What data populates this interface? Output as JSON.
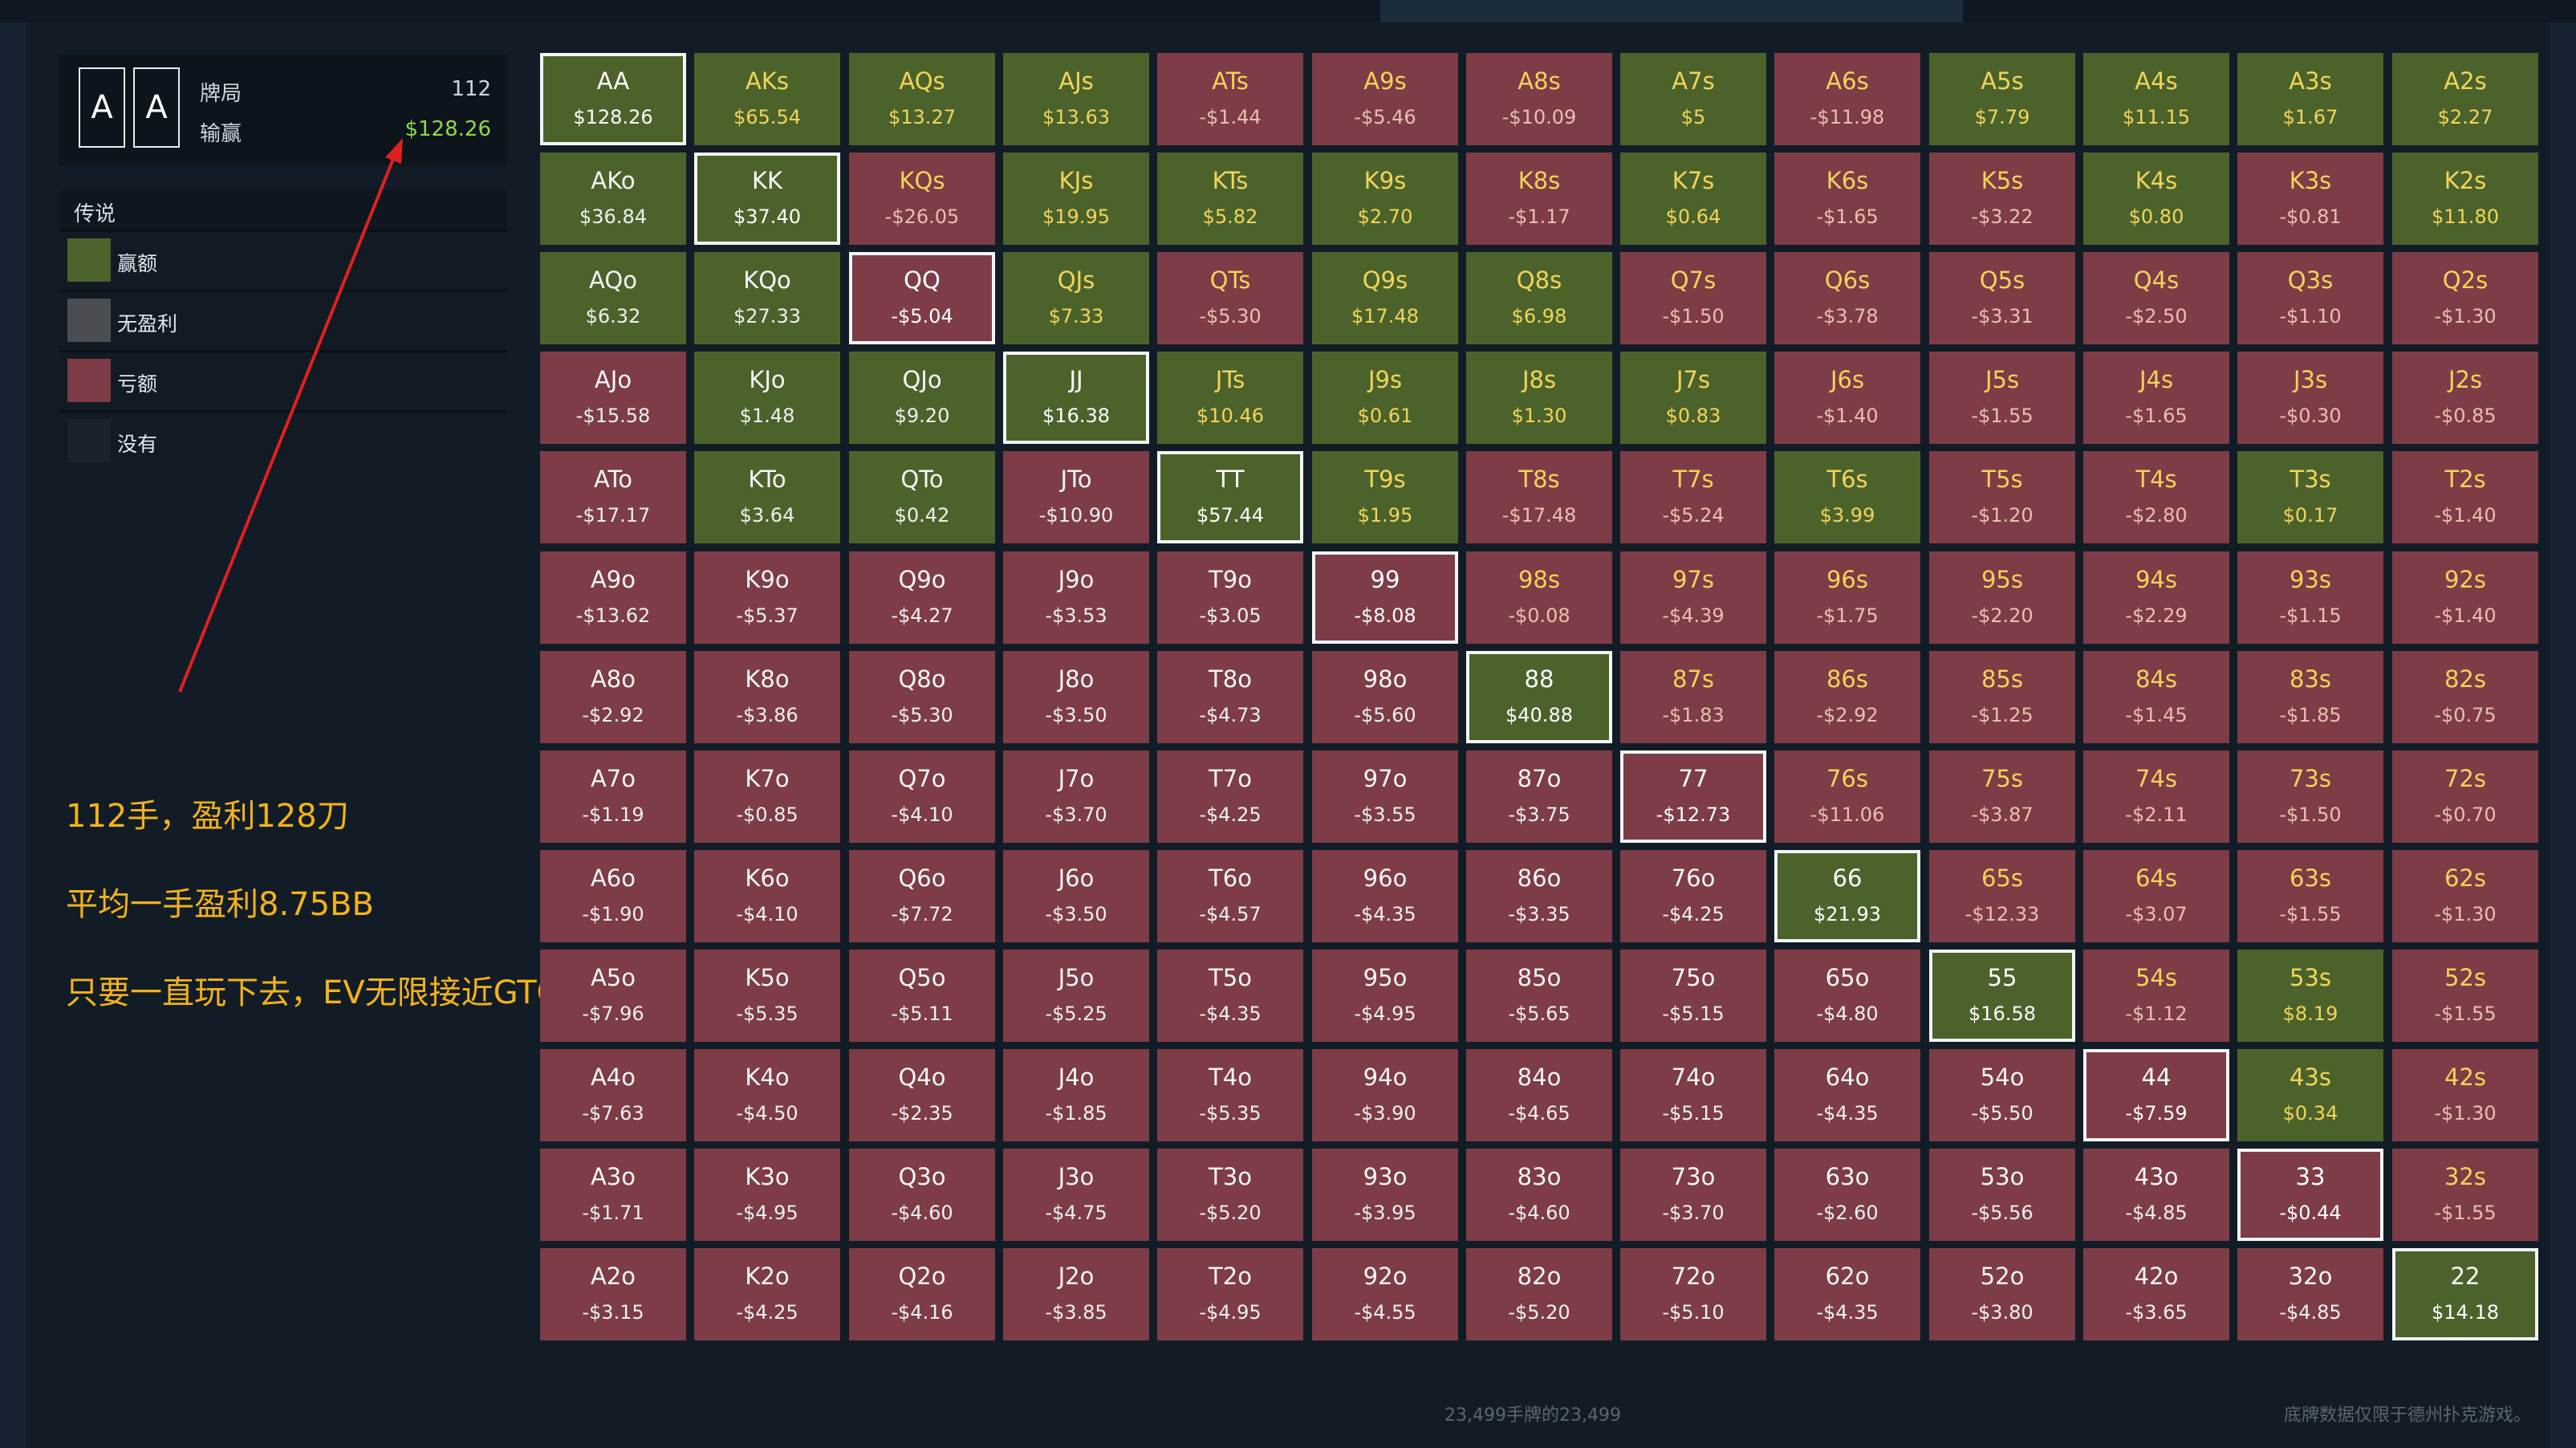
{
  "stats": {
    "cards": [
      "A",
      "A"
    ],
    "hands_label": "牌局",
    "hands_value": "112",
    "winnings_label": "输赢",
    "winnings_value": "$128.26"
  },
  "legend": {
    "title": "传说",
    "items": [
      {
        "label": "赢额",
        "color": "#4b632b"
      },
      {
        "label": "无盈利",
        "color": "#4a4e53"
      },
      {
        "label": "亏额",
        "color": "#7d3c46"
      },
      {
        "label": "没有",
        "color": "#1a222b"
      }
    ]
  },
  "notes": [
    "112手，盈利128刀",
    "平均一手盈利8.75BB",
    "只要一直玩下去，EV无限接近GTO"
  ],
  "colors": {
    "win": "#4b632b",
    "loss": "#7d3c46",
    "arrow": "#e02020",
    "note": "#f2b21c"
  },
  "grid": [
    [
      [
        "AA",
        "$128.26"
      ],
      [
        "AKs",
        "$65.54"
      ],
      [
        "AQs",
        "$13.27"
      ],
      [
        "AJs",
        "$13.63"
      ],
      [
        "ATs",
        "-$1.44"
      ],
      [
        "A9s",
        "-$5.46"
      ],
      [
        "A8s",
        "-$10.09"
      ],
      [
        "A7s",
        "$5"
      ],
      [
        "A6s",
        "-$11.98"
      ],
      [
        "A5s",
        "$7.79"
      ],
      [
        "A4s",
        "$11.15"
      ],
      [
        "A3s",
        "$1.67"
      ],
      [
        "A2s",
        "$2.27"
      ]
    ],
    [
      [
        "AKo",
        "$36.84"
      ],
      [
        "KK",
        "$37.40"
      ],
      [
        "KQs",
        "-$26.05"
      ],
      [
        "KJs",
        "$19.95"
      ],
      [
        "KTs",
        "$5.82"
      ],
      [
        "K9s",
        "$2.70"
      ],
      [
        "K8s",
        "-$1.17"
      ],
      [
        "K7s",
        "$0.64"
      ],
      [
        "K6s",
        "-$1.65"
      ],
      [
        "K5s",
        "-$3.22"
      ],
      [
        "K4s",
        "$0.80"
      ],
      [
        "K3s",
        "-$0.81"
      ],
      [
        "K2s",
        "$11.80"
      ]
    ],
    [
      [
        "AQo",
        "$6.32"
      ],
      [
        "KQo",
        "$27.33"
      ],
      [
        "QQ",
        "-$5.04"
      ],
      [
        "QJs",
        "$7.33"
      ],
      [
        "QTs",
        "-$5.30"
      ],
      [
        "Q9s",
        "$17.48"
      ],
      [
        "Q8s",
        "$6.98"
      ],
      [
        "Q7s",
        "-$1.50"
      ],
      [
        "Q6s",
        "-$3.78"
      ],
      [
        "Q5s",
        "-$3.31"
      ],
      [
        "Q4s",
        "-$2.50"
      ],
      [
        "Q3s",
        "-$1.10"
      ],
      [
        "Q2s",
        "-$1.30"
      ]
    ],
    [
      [
        "AJo",
        "-$15.58"
      ],
      [
        "KJo",
        "$1.48"
      ],
      [
        "QJo",
        "$9.20"
      ],
      [
        "JJ",
        "$16.38"
      ],
      [
        "JTs",
        "$10.46"
      ],
      [
        "J9s",
        "$0.61"
      ],
      [
        "J8s",
        "$1.30"
      ],
      [
        "J7s",
        "$0.83"
      ],
      [
        "J6s",
        "-$1.40"
      ],
      [
        "J5s",
        "-$1.55"
      ],
      [
        "J4s",
        "-$1.65"
      ],
      [
        "J3s",
        "-$0.30"
      ],
      [
        "J2s",
        "-$0.85"
      ]
    ],
    [
      [
        "ATo",
        "-$17.17"
      ],
      [
        "KTo",
        "$3.64"
      ],
      [
        "QTo",
        "$0.42"
      ],
      [
        "JTo",
        "-$10.90"
      ],
      [
        "TT",
        "$57.44"
      ],
      [
        "T9s",
        "$1.95"
      ],
      [
        "T8s",
        "-$17.48"
      ],
      [
        "T7s",
        "-$5.24"
      ],
      [
        "T6s",
        "$3.99"
      ],
      [
        "T5s",
        "-$1.20"
      ],
      [
        "T4s",
        "-$2.80"
      ],
      [
        "T3s",
        "$0.17"
      ],
      [
        "T2s",
        "-$1.40"
      ]
    ],
    [
      [
        "A9o",
        "-$13.62"
      ],
      [
        "K9o",
        "-$5.37"
      ],
      [
        "Q9o",
        "-$4.27"
      ],
      [
        "J9o",
        "-$3.53"
      ],
      [
        "T9o",
        "-$3.05"
      ],
      [
        "99",
        "-$8.08"
      ],
      [
        "98s",
        "-$0.08"
      ],
      [
        "97s",
        "-$4.39"
      ],
      [
        "96s",
        "-$1.75"
      ],
      [
        "95s",
        "-$2.20"
      ],
      [
        "94s",
        "-$2.29"
      ],
      [
        "93s",
        "-$1.15"
      ],
      [
        "92s",
        "-$1.40"
      ]
    ],
    [
      [
        "A8o",
        "-$2.92"
      ],
      [
        "K8o",
        "-$3.86"
      ],
      [
        "Q8o",
        "-$5.30"
      ],
      [
        "J8o",
        "-$3.50"
      ],
      [
        "T8o",
        "-$4.73"
      ],
      [
        "98o",
        "-$5.60"
      ],
      [
        "88",
        "$40.88"
      ],
      [
        "87s",
        "-$1.83"
      ],
      [
        "86s",
        "-$2.92"
      ],
      [
        "85s",
        "-$1.25"
      ],
      [
        "84s",
        "-$1.45"
      ],
      [
        "83s",
        "-$1.85"
      ],
      [
        "82s",
        "-$0.75"
      ]
    ],
    [
      [
        "A7o",
        "-$1.19"
      ],
      [
        "K7o",
        "-$0.85"
      ],
      [
        "Q7o",
        "-$4.10"
      ],
      [
        "J7o",
        "-$3.70"
      ],
      [
        "T7o",
        "-$4.25"
      ],
      [
        "97o",
        "-$3.55"
      ],
      [
        "87o",
        "-$3.75"
      ],
      [
        "77",
        "-$12.73"
      ],
      [
        "76s",
        "-$11.06"
      ],
      [
        "75s",
        "-$3.87"
      ],
      [
        "74s",
        "-$2.11"
      ],
      [
        "73s",
        "-$1.50"
      ],
      [
        "72s",
        "-$0.70"
      ]
    ],
    [
      [
        "A6o",
        "-$1.90"
      ],
      [
        "K6o",
        "-$4.10"
      ],
      [
        "Q6o",
        "-$7.72"
      ],
      [
        "J6o",
        "-$3.50"
      ],
      [
        "T6o",
        "-$4.57"
      ],
      [
        "96o",
        "-$4.35"
      ],
      [
        "86o",
        "-$3.35"
      ],
      [
        "76o",
        "-$4.25"
      ],
      [
        "66",
        "$21.93"
      ],
      [
        "65s",
        "-$12.33"
      ],
      [
        "64s",
        "-$3.07"
      ],
      [
        "63s",
        "-$1.55"
      ],
      [
        "62s",
        "-$1.30"
      ]
    ],
    [
      [
        "A5o",
        "-$7.96"
      ],
      [
        "K5o",
        "-$5.35"
      ],
      [
        "Q5o",
        "-$5.11"
      ],
      [
        "J5o",
        "-$5.25"
      ],
      [
        "T5o",
        "-$4.35"
      ],
      [
        "95o",
        "-$4.95"
      ],
      [
        "85o",
        "-$5.65"
      ],
      [
        "75o",
        "-$5.15"
      ],
      [
        "65o",
        "-$4.80"
      ],
      [
        "55",
        "$16.58"
      ],
      [
        "54s",
        "-$1.12"
      ],
      [
        "53s",
        "$8.19"
      ],
      [
        "52s",
        "-$1.55"
      ]
    ],
    [
      [
        "A4o",
        "-$7.63"
      ],
      [
        "K4o",
        "-$4.50"
      ],
      [
        "Q4o",
        "-$2.35"
      ],
      [
        "J4o",
        "-$1.85"
      ],
      [
        "T4o",
        "-$5.35"
      ],
      [
        "94o",
        "-$3.90"
      ],
      [
        "84o",
        "-$4.65"
      ],
      [
        "74o",
        "-$5.15"
      ],
      [
        "64o",
        "-$4.35"
      ],
      [
        "54o",
        "-$5.50"
      ],
      [
        "44",
        "-$7.59"
      ],
      [
        "43s",
        "$0.34"
      ],
      [
        "42s",
        "-$1.30"
      ]
    ],
    [
      [
        "A3o",
        "-$1.71"
      ],
      [
        "K3o",
        "-$4.95"
      ],
      [
        "Q3o",
        "-$4.60"
      ],
      [
        "J3o",
        "-$4.75"
      ],
      [
        "T3o",
        "-$5.20"
      ],
      [
        "93o",
        "-$3.95"
      ],
      [
        "83o",
        "-$4.60"
      ],
      [
        "73o",
        "-$3.70"
      ],
      [
        "63o",
        "-$2.60"
      ],
      [
        "53o",
        "-$5.56"
      ],
      [
        "43o",
        "-$4.85"
      ],
      [
        "33",
        "-$0.44"
      ],
      [
        "32s",
        "-$1.55"
      ]
    ],
    [
      [
        "A2o",
        "-$3.15"
      ],
      [
        "K2o",
        "-$4.25"
      ],
      [
        "Q2o",
        "-$4.16"
      ],
      [
        "J2o",
        "-$3.85"
      ],
      [
        "T2o",
        "-$4.95"
      ],
      [
        "92o",
        "-$4.55"
      ],
      [
        "82o",
        "-$5.20"
      ],
      [
        "72o",
        "-$5.10"
      ],
      [
        "62o",
        "-$4.35"
      ],
      [
        "52o",
        "-$3.80"
      ],
      [
        "42o",
        "-$3.65"
      ],
      [
        "32o",
        "-$4.85"
      ],
      [
        "22",
        "$14.18"
      ]
    ]
  ],
  "footer": {
    "count": "23,499手牌的23,499",
    "disclaimer": "底牌数据仅限于德州扑克游戏。"
  }
}
